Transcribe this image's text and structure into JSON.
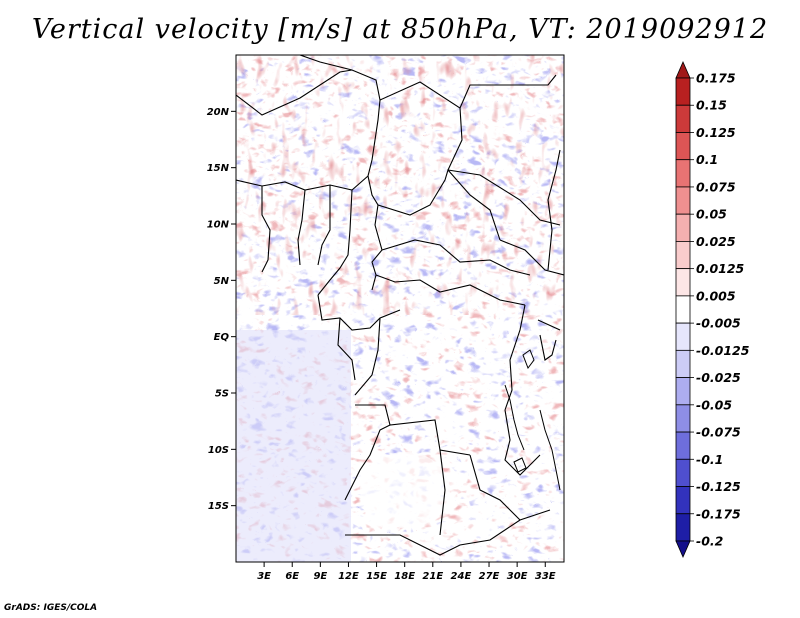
{
  "title": "Vertical velocity [m/s] at 850hPa, VT: 2019092912",
  "credit": "GrADS: IGES/COLA",
  "chart_data": {
    "type": "heatmap",
    "title": "Vertical velocity [m/s] at 850hPa, VT: 2019092912",
    "variable": "Vertical velocity",
    "units": "m/s",
    "level": "850hPa",
    "valid_time": "2019092912",
    "lon_range": [
      0,
      35
    ],
    "lat_range": [
      -20,
      25
    ],
    "x_ticks": [
      {
        "label": "3E",
        "value": 3
      },
      {
        "label": "6E",
        "value": 6
      },
      {
        "label": "9E",
        "value": 9
      },
      {
        "label": "12E",
        "value": 12
      },
      {
        "label": "15E",
        "value": 15
      },
      {
        "label": "18E",
        "value": 18
      },
      {
        "label": "21E",
        "value": 21
      },
      {
        "label": "24E",
        "value": 24
      },
      {
        "label": "27E",
        "value": 27
      },
      {
        "label": "30E",
        "value": 30
      },
      {
        "label": "33E",
        "value": 33
      }
    ],
    "y_ticks": [
      {
        "label": "20N",
        "value": 20
      },
      {
        "label": "15N",
        "value": 15
      },
      {
        "label": "10N",
        "value": 10
      },
      {
        "label": "5N",
        "value": 5
      },
      {
        "label": "EQ",
        "value": 0
      },
      {
        "label": "5S",
        "value": -5
      },
      {
        "label": "10S",
        "value": -10
      },
      {
        "label": "15S",
        "value": -15
      }
    ],
    "colorbar": {
      "labels": [
        "0.175",
        "0.15",
        "0.125",
        "0.1",
        "0.075",
        "0.05",
        "0.025",
        "0.0125",
        "0.005",
        "-0.005",
        "-0.0125",
        "-0.025",
        "-0.05",
        "-0.075",
        "-0.1",
        "-0.125",
        "-0.175",
        "-0.2"
      ],
      "colors": [
        "#a01818",
        "#b82020",
        "#cc3a3a",
        "#dd5555",
        "#e87373",
        "#ef9090",
        "#f5b0b0",
        "#f9cccc",
        "#fde6e6",
        "#ffffff",
        "#e6e6fc",
        "#ccccf6",
        "#adadf0",
        "#8e8ee6",
        "#6e6edc",
        "#4f4fcf",
        "#3232bd",
        "#1e1ea6",
        "#140f8a"
      ]
    }
  }
}
